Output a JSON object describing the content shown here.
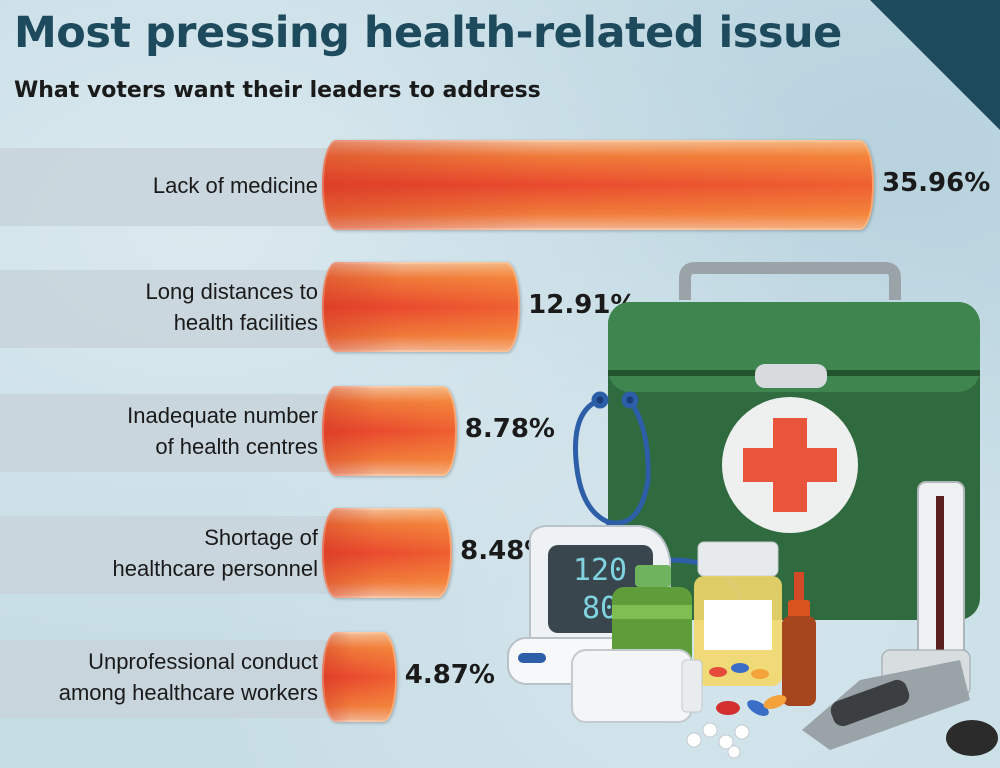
{
  "title": "Most pressing health-related issue",
  "subtitle": "What voters want their leaders to address",
  "colors": {
    "title": "#1d4a5c",
    "bar_core": "#e94a2e",
    "bar_edge": "#f07a3a",
    "band": "#c8d4da",
    "corner": "#1d4a5c"
  },
  "illustration": {
    "bp_monitor_readout": {
      "systolic": "120",
      "diastolic": "80"
    },
    "icons": [
      "first-aid-kit-icon",
      "stethoscope-icon",
      "blood-pressure-monitor-icon",
      "medicine-bottles-icon",
      "pills-icon",
      "sphygmomanometer-icon"
    ]
  },
  "chart_data": {
    "type": "bar",
    "orientation": "horizontal",
    "categories": [
      "Lack of medicine",
      "Long distances to\nhealth facilities",
      "Inadequate number\nof health centres",
      "Shortage of\nhealthcare personnel",
      "Unprofessional conduct\namong healthcare workers"
    ],
    "values": [
      35.96,
      12.91,
      8.78,
      8.48,
      4.87
    ],
    "value_labels": [
      "35.96%",
      "12.91%",
      "8.78%",
      "8.48%",
      "4.87%"
    ],
    "unit": "%",
    "xlim": [
      0,
      35.96
    ]
  }
}
